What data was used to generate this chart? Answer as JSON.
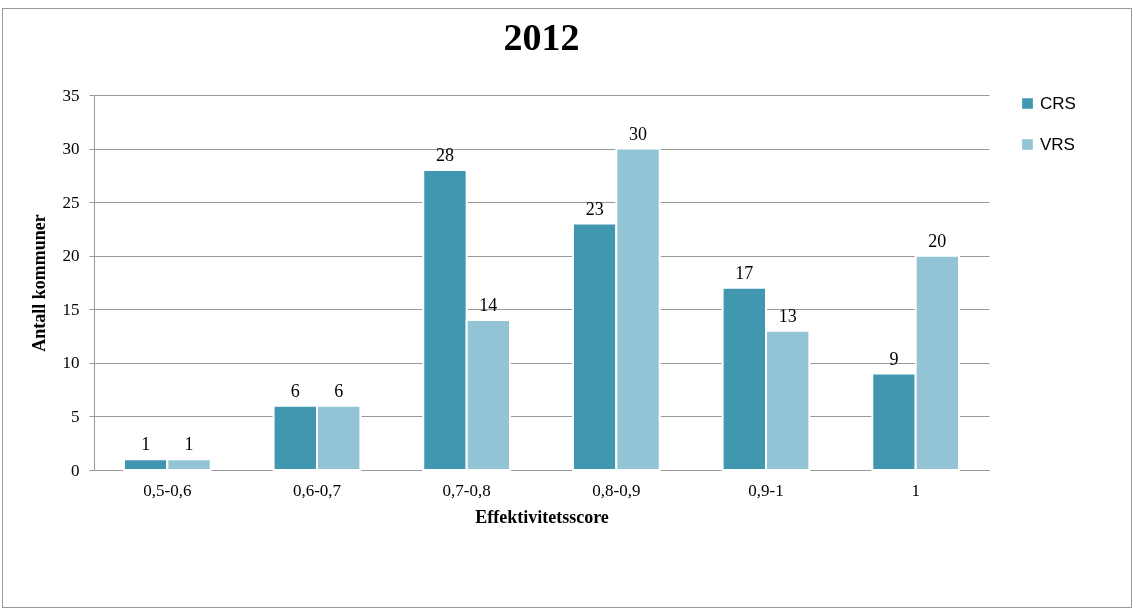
{
  "chart_data": {
    "type": "bar",
    "title": "2012",
    "xlabel": "Effektivitetsscore",
    "ylabel": "Antall kommuner",
    "categories": [
      "0,5-0,6",
      "0,6-0,7",
      "0,7-0,8",
      "0,8-0,9",
      "0,9-1",
      "1"
    ],
    "series": [
      {
        "name": "CRS",
        "color": "#4197b0",
        "values": [
          1,
          6,
          28,
          23,
          17,
          9
        ]
      },
      {
        "name": "VRS",
        "color": "#93c4d6",
        "values": [
          1,
          6,
          14,
          30,
          13,
          20
        ]
      }
    ],
    "ylim": [
      0,
      35
    ],
    "yticks": [
      0,
      5,
      10,
      15,
      20,
      25,
      30,
      35
    ],
    "grid": "y",
    "legend": "right",
    "data_labels": true
  }
}
